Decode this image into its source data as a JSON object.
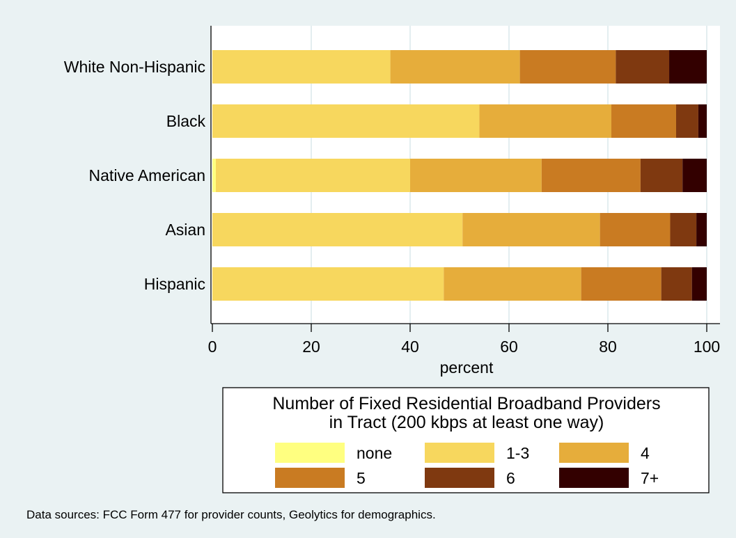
{
  "chart_data": {
    "type": "bar",
    "orientation": "horizontal",
    "stacked": true,
    "categories": [
      "White Non-Hispanic",
      "Black",
      "Native American",
      "Asian",
      "Hispanic"
    ],
    "series": [
      {
        "name": "none",
        "color": "#ffff80",
        "values": [
          0,
          0,
          0.7,
          0,
          0
        ]
      },
      {
        "name": "1-3",
        "color": "#f7d75e",
        "values": [
          36,
          54,
          39.3,
          50.6,
          46.8
        ]
      },
      {
        "name": "4",
        "color": "#e6ad3b",
        "values": [
          26.2,
          26.7,
          26.6,
          27.8,
          27.8
        ]
      },
      {
        "name": "5",
        "color": "#c97b22",
        "values": [
          19.4,
          13.1,
          20,
          14.2,
          16.2
        ]
      },
      {
        "name": "6",
        "color": "#7f3910",
        "values": [
          10.8,
          4.5,
          8.5,
          5.3,
          6.2
        ]
      },
      {
        "name": "7+",
        "color": "#330000",
        "values": [
          7.6,
          1.7,
          4.9,
          2.1,
          3
        ]
      }
    ],
    "xlabel": "percent",
    "xlim": [
      0,
      100
    ],
    "xticks": [
      0,
      20,
      40,
      60,
      80,
      100
    ],
    "grid": true,
    "legend": {
      "title_lines": [
        "Number of Fixed Residential Broadband Providers",
        "in Tract (200 kbps at least one way)"
      ],
      "placement": "bottom-center",
      "columns": 3
    },
    "note": "Data sources:  FCC Form 477 for provider counts, Geolytics for demographics."
  }
}
